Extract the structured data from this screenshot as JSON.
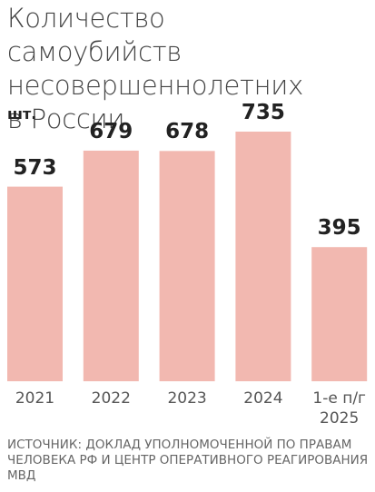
{
  "chart_data": {
    "type": "bar",
    "title": "Количество самоубийств несовершеннолетних в России",
    "unit": "шт.",
    "categories": [
      "2021",
      "2022",
      "2023",
      "2024",
      "1-е п/г 2025"
    ],
    "values": [
      573,
      679,
      678,
      735,
      395
    ],
    "color": "#f2b8b0",
    "source": "ИСТОЧНИК: ДОКЛАД УПОЛНОМОЧЕННОЙ ПО ПРАВАМ ЧЕЛОВЕКА РФ И ЦЕНТР ОПЕРАТИВНОГО РЕАГИРОВАНИЯ МВД"
  }
}
